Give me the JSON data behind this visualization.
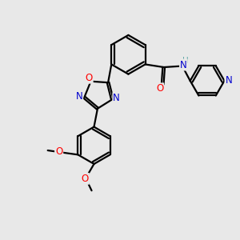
{
  "bg_color": "#e8e8e8",
  "line_color": "#000000",
  "bond_width": 1.6,
  "atom_colors": {
    "N": "#0000cd",
    "O": "#ff0000",
    "H": "#5fa8a8",
    "C": "#000000"
  },
  "font_size_atom": 8.5,
  "font_size_small": 7.5
}
